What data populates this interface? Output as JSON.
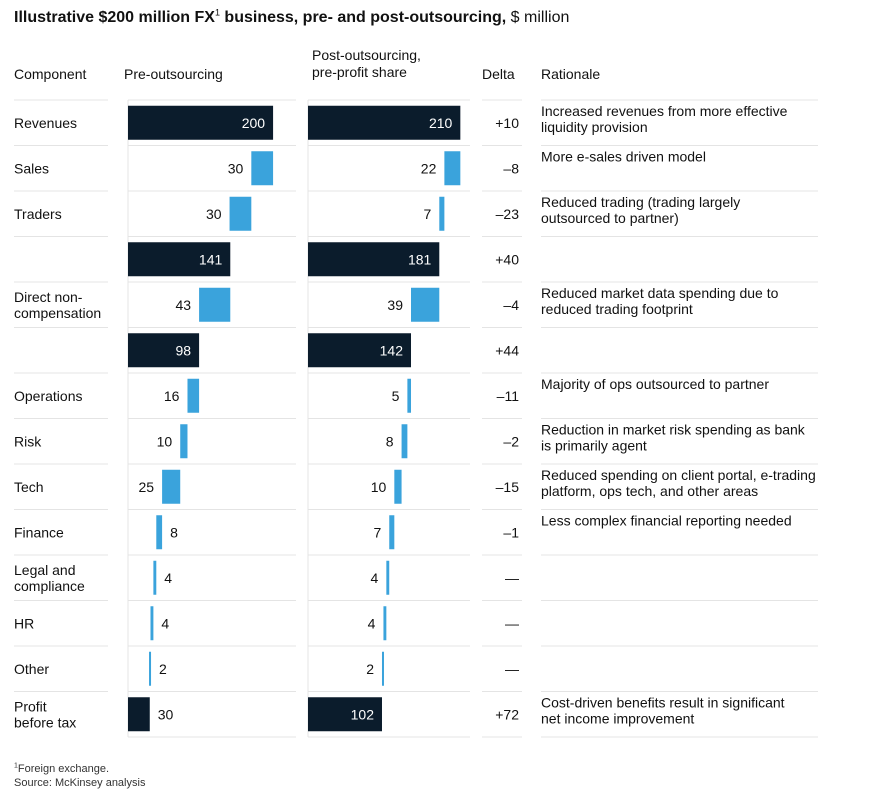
{
  "title": {
    "bold_part": "Illustrative $200 million FX",
    "footnote_mark": "1",
    "bold_rest": " business, pre- and post-outsourcing,",
    "unit": " $ million"
  },
  "headers": {
    "component": "Component",
    "pre": "Pre-outsourcing",
    "post_line1": "Post-outsourcing,",
    "post_line2": "pre-profit share",
    "delta": "Delta",
    "rationale": "Rationale"
  },
  "colors": {
    "total": "#0b1c2c",
    "component": "#3aa3dc",
    "divider": "#e4e4e4",
    "text": "#111111"
  },
  "chart_data": {
    "type": "bar",
    "subtype": "waterfall",
    "categories": [
      "Revenues",
      "Sales",
      "Traders",
      "",
      "Direct non-compensation",
      "",
      "Operations",
      "Risk",
      "Tech",
      "Finance",
      "Legal and compliance",
      "HR",
      "Other",
      "Profit before tax"
    ],
    "category_lines": [
      [
        "Revenues"
      ],
      [
        "Sales"
      ],
      [
        "Traders"
      ],
      [],
      [
        "Direct non-",
        "compensation"
      ],
      [],
      [
        "Operations"
      ],
      [
        "Risk"
      ],
      [
        "Tech"
      ],
      [
        "Finance"
      ],
      [
        "Legal and",
        "compliance"
      ],
      [
        "HR"
      ],
      [
        "Other"
      ],
      [
        "Profit",
        "before tax"
      ]
    ],
    "row_kind": [
      "total",
      "cost",
      "cost",
      "total",
      "cost",
      "total",
      "cost",
      "cost",
      "cost",
      "cost",
      "cost",
      "cost",
      "cost",
      "total"
    ],
    "series": [
      {
        "name": "Pre-outsourcing",
        "values": [
          200,
          30,
          30,
          141,
          43,
          98,
          16,
          10,
          25,
          8,
          4,
          4,
          2,
          30
        ]
      },
      {
        "name": "Post-outsourcing, pre-profit share",
        "values": [
          210,
          22,
          7,
          181,
          39,
          142,
          5,
          8,
          10,
          7,
          4,
          4,
          2,
          102
        ]
      }
    ],
    "delta": [
      "+10",
      "–8",
      "–23",
      "+40",
      "–4",
      "+44",
      "–11",
      "–2",
      "–15",
      "–1",
      "—",
      "—",
      "—",
      "+72"
    ],
    "rationale": [
      [
        "Increased revenues from more effective",
        "liquidity provision"
      ],
      [
        "More e-sales driven model"
      ],
      [
        "Reduced trading (trading largely",
        "outsourced to partner)"
      ],
      [],
      [
        "Reduced market data spending due to",
        "reduced trading footprint"
      ],
      [],
      [
        "Majority of ops outsourced to partner"
      ],
      [
        "Reduction in market risk spending as bank",
        "is primarily agent"
      ],
      [
        "Reduced spending on client portal, e-trading",
        "platform, ops tech, and other areas"
      ],
      [
        "Less complex financial reporting needed"
      ],
      [],
      [],
      [],
      [
        "Cost-driven benefits result in significant",
        "net income improvement"
      ]
    ]
  },
  "footnote": {
    "mark": "1",
    "line1": "Foreign exchange.",
    "line2": "Source: McKinsey analysis"
  }
}
